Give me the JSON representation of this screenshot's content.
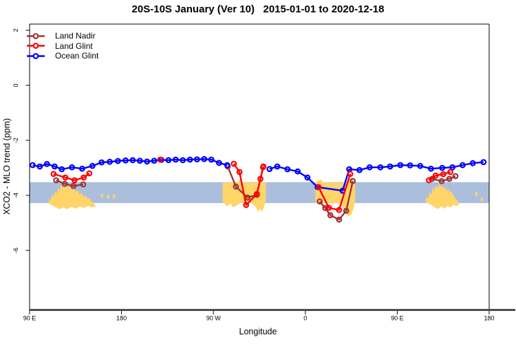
{
  "title": "20S-10S January (Ver 10)   2015-01-01 to 2020-12-18",
  "legend": {
    "items": [
      {
        "label": "Land Nadir",
        "color": "#A03232"
      },
      {
        "label": "Land Glint",
        "color": "#FF0000"
      },
      {
        "label": "Ocean Glint",
        "color": "#0000FF"
      }
    ]
  },
  "chart_data": {
    "type": "line",
    "title": "20S-10S January (Ver 10)   2015-01-01 to 2020-12-18",
    "x_axis": {
      "label": "Longitude",
      "min": 90,
      "max": 540,
      "note": "longitude wrapped eastward from 90E; 270=90W, 360=0, 450=90E, 540=180",
      "ticks": [
        {
          "value": 90,
          "label": "90 E"
        },
        {
          "value": 180,
          "label": "180"
        },
        {
          "value": 270,
          "label": "90 W"
        },
        {
          "value": 360,
          "label": "0"
        },
        {
          "value": 450,
          "label": "90 E"
        },
        {
          "value": 540,
          "label": "180"
        }
      ]
    },
    "y_axis": {
      "label": "XCO2 - MLO trend (ppm)",
      "min": -8.15,
      "max": 2.225,
      "ticks": [
        {
          "value": 2,
          "label": "2"
        },
        {
          "value": 0,
          "label": "0"
        },
        {
          "value": -2,
          "label": "-2"
        },
        {
          "value": -4,
          "label": "-4"
        },
        {
          "value": -6,
          "label": "-6"
        }
      ]
    },
    "reference_band": {
      "ppm_top": -3.52,
      "ppm_bottom": -4.28,
      "color": "#ABBFDC"
    },
    "land_shading": {
      "color": "#FFD469",
      "polygons": [
        [
          [
            108.5,
            -4.26
          ],
          [
            109.5,
            -4.12
          ],
          [
            110.5,
            -4.18
          ],
          [
            112,
            -3.96
          ],
          [
            113.5,
            -4.05
          ],
          [
            115,
            -3.86
          ],
          [
            116.5,
            -3.95
          ],
          [
            118,
            -3.72
          ],
          [
            119.5,
            -3.84
          ],
          [
            121,
            -3.6
          ],
          [
            122.5,
            -3.74
          ],
          [
            124,
            -3.56
          ],
          [
            125.5,
            -3.7
          ],
          [
            127,
            -3.6
          ],
          [
            128.5,
            -3.74
          ],
          [
            130,
            -3.66
          ],
          [
            131.5,
            -3.8
          ],
          [
            133.5,
            -3.72
          ],
          [
            135,
            -3.88
          ],
          [
            137,
            -3.8
          ],
          [
            139,
            -3.96
          ],
          [
            141,
            -3.9
          ],
          [
            143,
            -4.06
          ],
          [
            145,
            -4.0
          ],
          [
            147,
            -4.14
          ],
          [
            149,
            -4.1
          ],
          [
            151,
            -4.22
          ],
          [
            153,
            -4.3
          ],
          [
            155,
            -4.38
          ],
          [
            151,
            -4.44
          ],
          [
            147,
            -4.38
          ],
          [
            143,
            -4.46
          ],
          [
            139,
            -4.4
          ],
          [
            135,
            -4.48
          ],
          [
            131,
            -4.42
          ],
          [
            127,
            -4.5
          ],
          [
            123,
            -4.44
          ],
          [
            119,
            -4.5
          ],
          [
            115,
            -4.42
          ],
          [
            112,
            -4.36
          ],
          [
            109.5,
            -4.32
          ]
        ],
        [
          [
            159.5,
            -3.98
          ],
          [
            161,
            -3.92
          ],
          [
            162.5,
            -4.0
          ],
          [
            161,
            -4.12
          ]
        ],
        [
          [
            165.5,
            -4.02
          ],
          [
            167,
            -3.96
          ],
          [
            168.5,
            -4.05
          ],
          [
            167,
            -4.15
          ]
        ],
        [
          [
            171,
            -4.0
          ],
          [
            172.5,
            -3.95
          ],
          [
            174,
            -4.04
          ],
          [
            172.5,
            -4.14
          ]
        ],
        [
          [
            279,
            -4.26
          ],
          [
            279,
            -3.53
          ],
          [
            293.5,
            -3.53
          ],
          [
            294.5,
            -3.44
          ],
          [
            296.5,
            -3.42
          ],
          [
            297.5,
            -3.53
          ],
          [
            321.3,
            -3.53
          ],
          [
            321.3,
            -4.18
          ],
          [
            319.5,
            -4.42
          ],
          [
            317.5,
            -4.6
          ],
          [
            315.5,
            -4.48
          ],
          [
            313.5,
            -4.6
          ],
          [
            311.5,
            -4.42
          ],
          [
            309,
            -4.32
          ],
          [
            305,
            -4.26
          ],
          [
            301,
            -4.3
          ],
          [
            297,
            -4.26
          ],
          [
            293,
            -4.36
          ],
          [
            289.5,
            -4.44
          ],
          [
            286.5,
            -4.3
          ],
          [
            283.5,
            -4.4
          ],
          [
            281,
            -4.3
          ]
        ],
        [
          [
            369.8,
            -4.26
          ],
          [
            369.8,
            -3.53
          ],
          [
            372.5,
            -3.45
          ],
          [
            375.5,
            -3.43
          ],
          [
            377.5,
            -3.53
          ],
          [
            401.5,
            -3.53
          ],
          [
            402.5,
            -3.4
          ],
          [
            405.5,
            -3.36
          ],
          [
            407.5,
            -3.5
          ],
          [
            408.8,
            -3.62
          ],
          [
            408.8,
            -4.22
          ],
          [
            407,
            -4.5
          ],
          [
            405,
            -4.7
          ],
          [
            403,
            -4.76
          ],
          [
            401,
            -4.7
          ],
          [
            399,
            -4.58
          ],
          [
            397,
            -4.44
          ],
          [
            394,
            -4.3
          ],
          [
            390,
            -4.26
          ],
          [
            386,
            -4.3
          ],
          [
            381,
            -4.26
          ],
          [
            375,
            -4.3
          ],
          [
            372,
            -4.26
          ]
        ],
        [
          [
            477.5,
            -4.22
          ],
          [
            479,
            -4.04
          ],
          [
            480.5,
            -4.1
          ],
          [
            482,
            -3.88
          ],
          [
            483.5,
            -3.96
          ],
          [
            485,
            -3.7
          ],
          [
            486.5,
            -3.82
          ],
          [
            488,
            -3.62
          ],
          [
            489.5,
            -3.74
          ],
          [
            491,
            -3.56
          ],
          [
            492.5,
            -3.7
          ],
          [
            494,
            -3.62
          ],
          [
            495.5,
            -3.76
          ],
          [
            497,
            -3.68
          ],
          [
            498.5,
            -3.84
          ],
          [
            500,
            -3.76
          ],
          [
            501.5,
            -3.9
          ],
          [
            503,
            -3.84
          ],
          [
            505,
            -4.0
          ],
          [
            507,
            -4.1
          ],
          [
            509,
            -4.2
          ],
          [
            510.5,
            -4.3
          ],
          [
            508,
            -4.4
          ],
          [
            505,
            -4.34
          ],
          [
            502,
            -4.44
          ],
          [
            499,
            -4.38
          ],
          [
            496,
            -4.48
          ],
          [
            493,
            -4.4
          ],
          [
            490,
            -4.5
          ],
          [
            487,
            -4.44
          ],
          [
            484,
            -4.36
          ],
          [
            481,
            -4.3
          ],
          [
            478.5,
            -4.26
          ]
        ],
        [
          [
            526,
            -3.92
          ],
          [
            527.5,
            -3.85
          ],
          [
            529,
            -3.95
          ],
          [
            527.5,
            -4.06
          ]
        ],
        [
          [
            531.5,
            -4.12
          ],
          [
            533,
            -4.06
          ],
          [
            534,
            -4.16
          ],
          [
            532.5,
            -4.24
          ]
        ]
      ]
    },
    "series": [
      {
        "name": "Land Nadir",
        "color": "#A03232",
        "segments": [
          [
            [
              116,
              -3.45
            ],
            [
              124.5,
              -3.58
            ],
            [
              133,
              -3.66
            ],
            [
              142.5,
              -3.6
            ]
          ],
          [
            [
              284,
              -2.95
            ],
            [
              292,
              -3.68
            ],
            [
              303.5,
              -4.08
            ],
            [
              312.5,
              -3.98
            ],
            [
              318.5,
              -2.98
            ]
          ],
          [
            [
              374,
              -4.22
            ],
            [
              379.5,
              -4.46
            ],
            [
              384.5,
              -4.72
            ],
            [
              393,
              -4.88
            ],
            [
              400,
              -4.56
            ],
            [
              406.5,
              -3.48
            ]
          ],
          [
            [
              484,
              -3.4
            ],
            [
              493.5,
              -3.48
            ],
            [
              501,
              -3.4
            ],
            [
              507,
              -3.3
            ]
          ]
        ]
      },
      {
        "name": "Ocean Glint",
        "color": "#0000FF",
        "segments": [
          [
            [
              93,
              -2.9
            ],
            [
              100,
              -2.95
            ],
            [
              107,
              -2.86
            ],
            [
              114.5,
              -2.95
            ],
            [
              121.5,
              -3.05
            ],
            [
              131.5,
              -2.98
            ],
            [
              141.5,
              -3.03
            ],
            [
              151.5,
              -2.93
            ],
            [
              160.5,
              -2.8
            ],
            [
              168.5,
              -2.78
            ],
            [
              176.5,
              -2.75
            ],
            [
              184,
              -2.73
            ],
            [
              191,
              -2.72
            ],
            [
              198,
              -2.74
            ],
            [
              205,
              -2.77
            ],
            [
              212,
              -2.74
            ],
            [
              219,
              -2.71
            ],
            [
              226,
              -2.72
            ],
            [
              233,
              -2.7
            ],
            [
              240,
              -2.72
            ],
            [
              247,
              -2.7
            ],
            [
              254,
              -2.69
            ],
            [
              261,
              -2.68
            ],
            [
              268,
              -2.7
            ],
            [
              275.5,
              -2.82
            ],
            [
              283.5,
              -2.9
            ]
          ],
          [
            [
              325,
              -3.04
            ],
            [
              332.5,
              -2.95
            ],
            [
              342.5,
              -3.05
            ],
            [
              352.5,
              -3.13
            ],
            [
              362,
              -3.35
            ],
            [
              372,
              -3.7
            ],
            [
              396.5,
              -3.83
            ],
            [
              403,
              -3.05
            ],
            [
              413,
              -3.08
            ],
            [
              423,
              -2.98
            ],
            [
              433.5,
              -2.98
            ],
            [
              443,
              -2.95
            ],
            [
              453,
              -2.9
            ],
            [
              462.5,
              -2.91
            ],
            [
              472.5,
              -2.93
            ],
            [
              483,
              -3.03
            ],
            [
              494,
              -3.0
            ],
            [
              504,
              -2.98
            ],
            [
              514,
              -2.9
            ],
            [
              524,
              -2.83
            ],
            [
              534.5,
              -2.79
            ]
          ]
        ]
      },
      {
        "name": "Land Glint",
        "color": "#FF0000",
        "segments": [
          [
            [
              113.5,
              -3.22
            ],
            [
              125,
              -3.35
            ],
            [
              134,
              -3.45
            ],
            [
              143,
              -3.35
            ],
            [
              148.5,
              -3.2
            ]
          ],
          [
            [
              218,
              -2.7
            ]
          ],
          [
            [
              290,
              -2.85
            ],
            [
              295.5,
              -3.15
            ],
            [
              302,
              -4.35
            ],
            [
              312.5,
              -3.95
            ],
            [
              316,
              -3.4
            ],
            [
              319,
              -2.95
            ]
          ],
          [
            [
              373,
              -3.7
            ],
            [
              383,
              -4.45
            ],
            [
              393,
              -4.53
            ],
            [
              404,
              -3.22
            ]
          ],
          [
            [
              481,
              -3.45
            ],
            [
              487.5,
              -3.28
            ],
            [
              495,
              -3.23
            ],
            [
              502,
              -3.15
            ]
          ]
        ]
      }
    ],
    "style": {
      "axis_line_color": "#4D4D4D",
      "box_color": "#000000"
    }
  }
}
